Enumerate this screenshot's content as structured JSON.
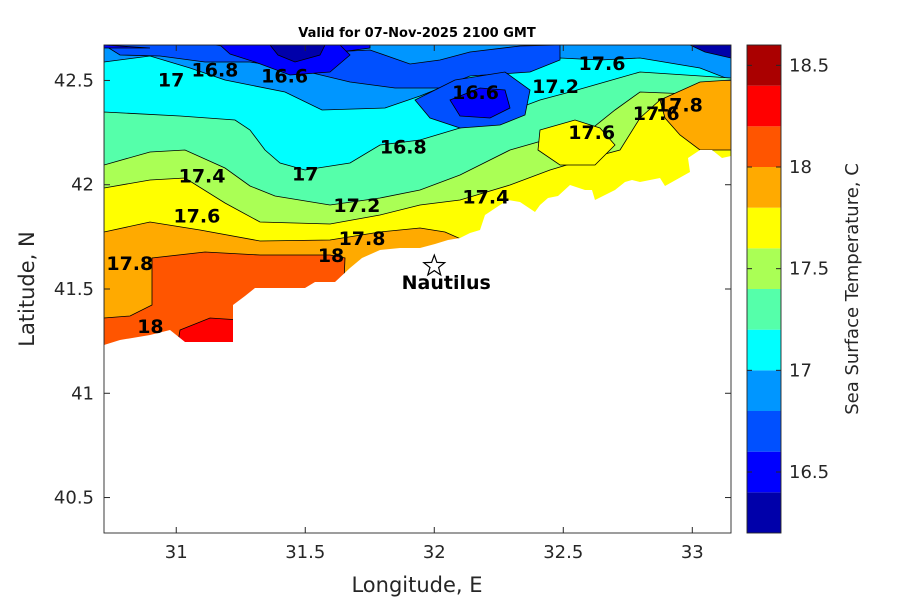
{
  "chart_data": {
    "type": "contourf",
    "title": "Valid for 07-Nov-2025 2100 GMT",
    "xlabel": "Longitude, E",
    "ylabel": "Latitude, N",
    "xlim": [
      30.72,
      33.15
    ],
    "ylim": [
      40.33,
      42.67
    ],
    "xticks": [
      31,
      31.5,
      32,
      32.5,
      33
    ],
    "yticks": [
      40.5,
      41,
      41.5,
      42,
      42.5
    ],
    "colorbar": {
      "label": "Sea Surface Temperature, C",
      "range": [
        16.2,
        18.6
      ],
      "ticks": [
        16.5,
        17,
        17.5,
        18,
        18.5
      ],
      "levels": [
        16.2,
        16.4,
        16.6,
        16.8,
        17.0,
        17.2,
        17.4,
        17.6,
        17.8,
        18.0,
        18.2,
        18.4,
        18.6
      ],
      "colors": [
        "#0000aa",
        "#0000ff",
        "#0050ff",
        "#0096ff",
        "#00ffff",
        "#55ffaa",
        "#aaff55",
        "#ffff00",
        "#ffaa00",
        "#ff5500",
        "#ff0000",
        "#aa0000"
      ]
    },
    "contour_labels": [
      {
        "text": "17",
        "lon": 30.98,
        "lat": 42.47
      },
      {
        "text": "16.8",
        "lon": 31.15,
        "lat": 42.52
      },
      {
        "text": "16.6",
        "lon": 31.42,
        "lat": 42.49
      },
      {
        "text": "16.6",
        "lon": 32.16,
        "lat": 42.41
      },
      {
        "text": "17.6",
        "lon": 32.65,
        "lat": 42.55
      },
      {
        "text": "17.2",
        "lon": 32.47,
        "lat": 42.44
      },
      {
        "text": "17.8",
        "lon": 32.95,
        "lat": 42.35
      },
      {
        "text": "17.6",
        "lon": 32.86,
        "lat": 42.31
      },
      {
        "text": "16.8",
        "lon": 31.88,
        "lat": 42.15
      },
      {
        "text": "17.6",
        "lon": 32.61,
        "lat": 42.22
      },
      {
        "text": "17.4",
        "lon": 31.1,
        "lat": 42.01
      },
      {
        "text": "17",
        "lon": 31.5,
        "lat": 42.02
      },
      {
        "text": "17.2",
        "lon": 31.7,
        "lat": 41.87
      },
      {
        "text": "17.4",
        "lon": 32.2,
        "lat": 41.91
      },
      {
        "text": "17.6",
        "lon": 31.08,
        "lat": 41.82
      },
      {
        "text": "17.8",
        "lon": 31.72,
        "lat": 41.71
      },
      {
        "text": "18",
        "lon": 31.6,
        "lat": 41.63
      },
      {
        "text": "17.8",
        "lon": 30.82,
        "lat": 41.59
      },
      {
        "text": "18",
        "lon": 30.9,
        "lat": 41.29
      }
    ],
    "station": {
      "name": "Nautilus",
      "lon": 32.0,
      "lat": 41.61
    }
  }
}
